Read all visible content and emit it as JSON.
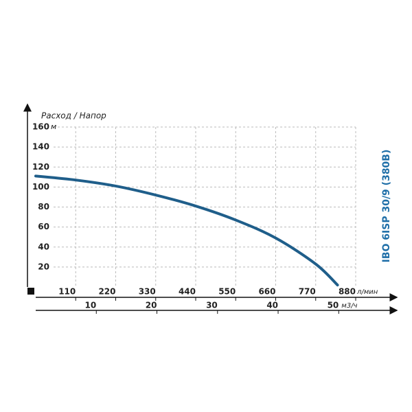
{
  "chart_data": {
    "type": "line",
    "subtitle": "Расход / Напор",
    "title": "IBO 6ISP 30/9 (380В)",
    "y_unit": "м",
    "x_unit": "л/мин",
    "x2_unit": "м3/ч",
    "x": [
      0,
      110,
      220,
      330,
      440,
      550,
      660,
      770,
      830
    ],
    "series": [
      {
        "name": "IBO 6ISP 30/9 (380В)",
        "color": "#1f5e8a",
        "values": [
          111,
          107,
          101,
          92,
          81,
          67,
          49,
          23,
          2
        ]
      }
    ],
    "xlim": [
      0,
      880
    ],
    "xticks": [
      110,
      220,
      330,
      440,
      550,
      660,
      770,
      880
    ],
    "x2lim": [
      0,
      52.8
    ],
    "x2ticks": [
      10,
      20,
      30,
      40,
      50
    ],
    "ylim": [
      0,
      160
    ],
    "yticks": [
      20,
      40,
      60,
      80,
      100,
      120,
      140,
      160
    ],
    "grid": true
  }
}
